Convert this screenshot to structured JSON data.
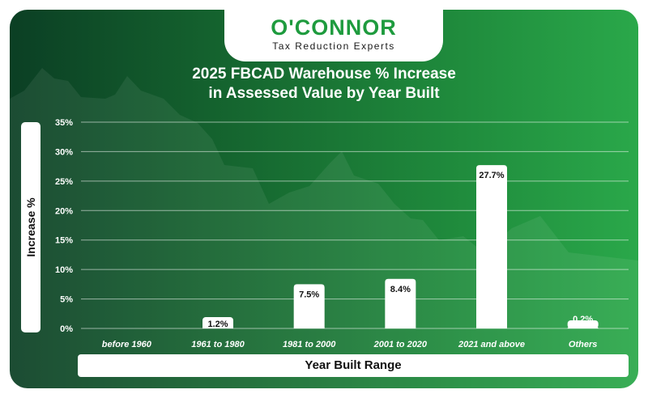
{
  "brand": {
    "name": "O'CONNOR",
    "tagline": "Tax Reduction Experts"
  },
  "colors": {
    "accent": "#1e9b3e",
    "bar": "#ffffff",
    "label": "#111111"
  },
  "chart_data": {
    "type": "bar",
    "title": "2025 FBCAD Warehouse % Increase in Assessed Value by Year Built",
    "title_lines": [
      "2025 FBCAD Warehouse % Increase",
      "in Assessed Value by Year Built"
    ],
    "xlabel": "Year Built Range",
    "ylabel": "Increase %",
    "categories": [
      "before 1960",
      "1961 to 1980",
      "1981 to 2000",
      "2001 to 2020",
      "2021 and above",
      "Others"
    ],
    "values": [
      0,
      1.2,
      7.5,
      8.4,
      27.7,
      0.2
    ],
    "value_labels": [
      "",
      "1.2%",
      "7.5%",
      "8.4%",
      "27.7%",
      "0.2%"
    ],
    "yticks": [
      "0%",
      "5%",
      "10%",
      "15%",
      "20%",
      "25%",
      "30%",
      "35%"
    ],
    "ylim": [
      0,
      35
    ],
    "grid": true
  }
}
